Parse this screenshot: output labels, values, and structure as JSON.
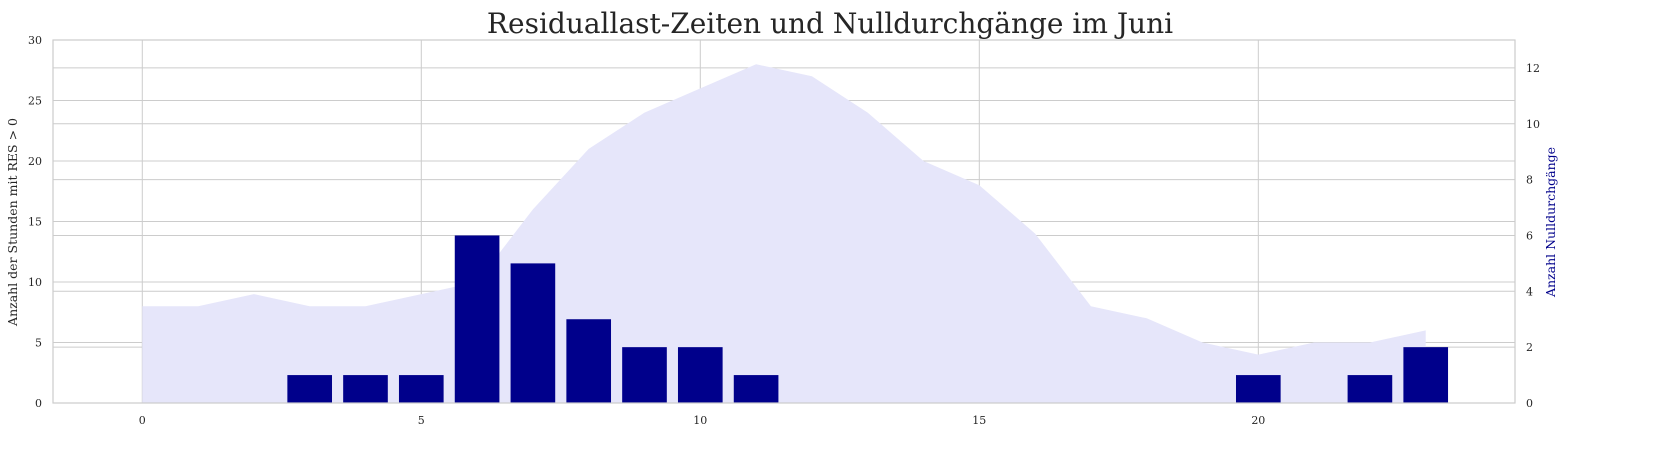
{
  "chart_data": {
    "type": "bar",
    "title": "Residuallast-Zeiten und Nulldurchgänge im Juni",
    "xlabel": "",
    "x": [
      0,
      1,
      2,
      3,
      4,
      5,
      6,
      7,
      8,
      9,
      10,
      11,
      12,
      13,
      14,
      15,
      16,
      17,
      18,
      19,
      20,
      21,
      22,
      23
    ],
    "xlim": [
      -1.6,
      24.6
    ],
    "x_ticks": [
      0,
      5,
      10,
      15,
      20
    ],
    "left_axis": {
      "label": "Anzahl der Stunden mit RES > 0",
      "ylim": [
        0,
        30
      ],
      "ticks": [
        0,
        5,
        10,
        15,
        20,
        25,
        30
      ]
    },
    "right_axis": {
      "label": "Anzahl Nulldurchgänge",
      "ylim": [
        0,
        13
      ],
      "ticks": [
        0,
        2,
        4,
        6,
        8,
        10,
        12
      ],
      "label_color": "#00008b"
    },
    "series": [
      {
        "type": "area",
        "axis": "left",
        "color": "#e6e6fa",
        "values": [
          8,
          8,
          9,
          8,
          8,
          9,
          10,
          16,
          21,
          24,
          26,
          28,
          27,
          24,
          20,
          18,
          14,
          8,
          7,
          5,
          4,
          5,
          5,
          6
        ]
      },
      {
        "type": "bar",
        "axis": "right",
        "color": "#00008b",
        "values": [
          0,
          0,
          0,
          1,
          1,
          1,
          6,
          5,
          3,
          2,
          2,
          1,
          0,
          0,
          0,
          0,
          0,
          0,
          0,
          0,
          1,
          0,
          1,
          2
        ]
      }
    ],
    "grid": true
  }
}
